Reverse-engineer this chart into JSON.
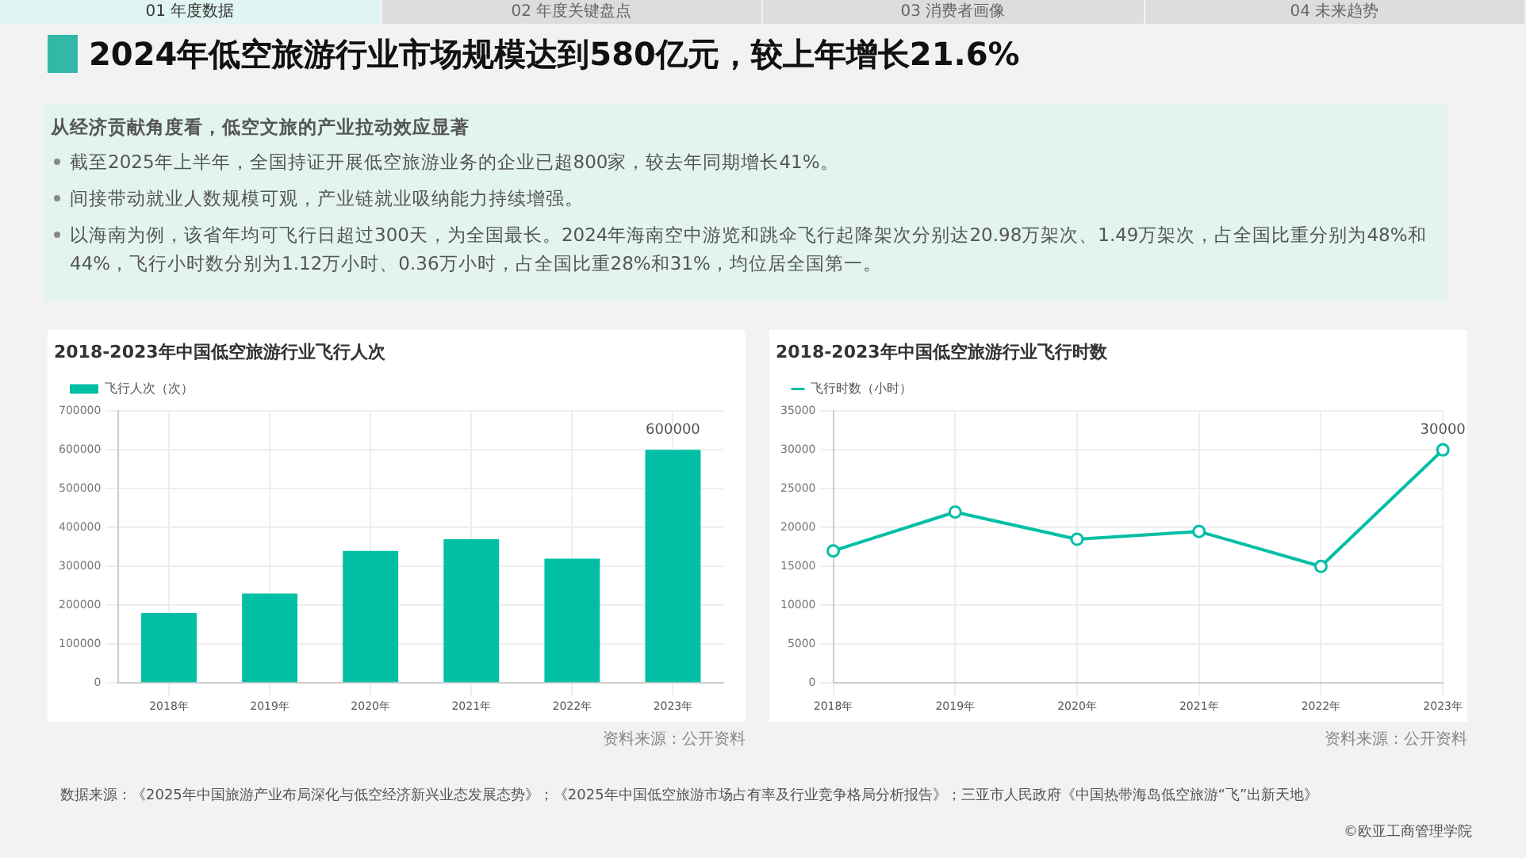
{
  "chart_data": [
    {
      "type": "other",
      "title": "2024年低空旅游行业市场规模达到580亿元，较上年增长21.6%",
      "subtitle": "从经济贡献角度看，低空文旅的产业拉动效应显著",
      "annotations": [
        "01 年度数据",
        "02 年度关键盘点",
        "03 消费者画像",
        "04 未来趋势",
        "截至2025年上半年，全国持证开展低空旅游业务的企业已超800家，较去年同期增长41%。",
        "间接带动就业人数规模可观，产业链就业吸纳能力持续增强。",
        "以海南为例，该省年均可飞行日超过300天，为全国最长。2024年海南空中游览和跳伞飞行起降架次分别达20.98万架次、1.49万架次，占全国比重分别为48%和44%，飞行小时数分别为1.12万小时、0.36万小时，占全国比重28%和31%，均位居全国第一。",
        "数据来源：《2025年中国旅游产业布局深化与低空经济新兴业态发展态势》；《2025年中国低空旅游市场占有率及行业竞争格局分析报告》；三亚市人民政府《中国热带海岛低空旅游“飞”出新天地》",
        "©欧亚工商管理学院"
      ]
    },
    {
      "type": "bar",
      "title": "2018-2023年中国低空旅游行业飞行人次",
      "categories": [
        "2018年",
        "2019年",
        "2020年",
        "2021年",
        "2022年",
        "2023年"
      ],
      "series": [
        {
          "name": "飞行人次（次）",
          "color": "#00bfa5",
          "values": [
            180000,
            230000,
            340000,
            370000,
            320000,
            600000
          ],
          "value_labels": [
            null,
            null,
            null,
            null,
            null,
            "600000"
          ]
        }
      ],
      "ylim": [
        0,
        700000
      ],
      "yticks": [
        0,
        100000,
        200000,
        300000,
        400000,
        500000,
        600000,
        700000
      ],
      "grid": true,
      "legend": "top",
      "annotations": [
        "资料来源：公开资料"
      ]
    },
    {
      "type": "line",
      "title": "2018-2023年中国低空旅游行业飞行时数",
      "categories": [
        "2018年",
        "2019年",
        "2020年",
        "2021年",
        "2022年",
        "2023年"
      ],
      "series": [
        {
          "name": "飞行时数（小时）",
          "color": "#00bfa5",
          "values": [
            17000,
            22000,
            18500,
            19500,
            15000,
            30000
          ],
          "value_labels": [
            null,
            null,
            null,
            null,
            null,
            "30000"
          ]
        }
      ],
      "ylim": [
        0,
        35000
      ],
      "yticks": [
        0,
        5000,
        10000,
        15000,
        20000,
        25000,
        30000,
        35000
      ],
      "grid": true,
      "legend": "top",
      "marker": "circle",
      "annotations": [
        "资料来源：公开资料"
      ]
    }
  ]
}
